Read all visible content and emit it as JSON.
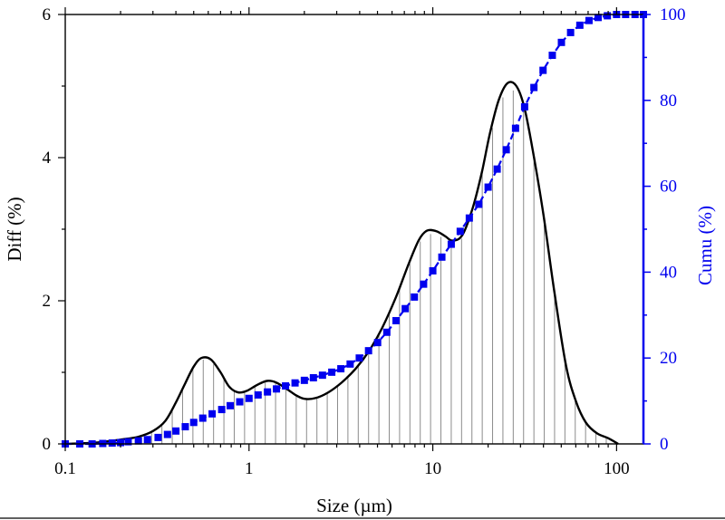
{
  "chart_data": {
    "type": "line",
    "xlabel": "Size (µm)",
    "ylabel_left": "Diff (%)",
    "ylabel_right": "Cumu (%)",
    "x_scale": "log",
    "xlim": [
      0.1,
      140
    ],
    "ylim_left": [
      0,
      6
    ],
    "ylim_right": [
      0,
      100
    ],
    "x_ticks": [
      {
        "value": 0.1,
        "label": "0.1"
      },
      {
        "value": 1,
        "label": "1"
      },
      {
        "value": 10,
        "label": "10"
      },
      {
        "value": 100,
        "label": "100"
      }
    ],
    "y_left_ticks": [
      {
        "value": 0,
        "label": "0"
      },
      {
        "value": 2,
        "label": "2"
      },
      {
        "value": 4,
        "label": "4"
      },
      {
        "value": 6,
        "label": "6"
      }
    ],
    "y_right_ticks": [
      {
        "value": 0,
        "label": "0"
      },
      {
        "value": 20,
        "label": "20"
      },
      {
        "value": 40,
        "label": "40"
      },
      {
        "value": 60,
        "label": "60"
      },
      {
        "value": 80,
        "label": "80"
      },
      {
        "value": 100,
        "label": "100"
      }
    ],
    "colors": {
      "diff": "#000000",
      "cumu": "#0000ee",
      "bars": "#8c8c8c"
    },
    "series": [
      {
        "name": "Diff",
        "axis": "left",
        "style": "line",
        "points": [
          [
            0.1,
            0.0
          ],
          [
            0.15,
            0.02
          ],
          [
            0.2,
            0.06
          ],
          [
            0.25,
            0.1
          ],
          [
            0.3,
            0.18
          ],
          [
            0.35,
            0.32
          ],
          [
            0.4,
            0.58
          ],
          [
            0.45,
            0.85
          ],
          [
            0.5,
            1.08
          ],
          [
            0.55,
            1.2
          ],
          [
            0.62,
            1.18
          ],
          [
            0.7,
            1.0
          ],
          [
            0.78,
            0.8
          ],
          [
            0.87,
            0.72
          ],
          [
            0.97,
            0.74
          ],
          [
            1.1,
            0.82
          ],
          [
            1.25,
            0.88
          ],
          [
            1.4,
            0.86
          ],
          [
            1.6,
            0.77
          ],
          [
            1.8,
            0.68
          ],
          [
            2.0,
            0.63
          ],
          [
            2.3,
            0.64
          ],
          [
            2.7,
            0.72
          ],
          [
            3.2,
            0.86
          ],
          [
            3.8,
            1.05
          ],
          [
            4.5,
            1.3
          ],
          [
            5.3,
            1.62
          ],
          [
            6.3,
            2.05
          ],
          [
            7.4,
            2.52
          ],
          [
            8.4,
            2.85
          ],
          [
            9.3,
            2.98
          ],
          [
            10.5,
            2.97
          ],
          [
            11.7,
            2.9
          ],
          [
            12.8,
            2.84
          ],
          [
            14.5,
            2.92
          ],
          [
            16.5,
            3.3
          ],
          [
            18.5,
            3.8
          ],
          [
            20.5,
            4.35
          ],
          [
            22.8,
            4.8
          ],
          [
            25.5,
            5.04
          ],
          [
            28.5,
            5.0
          ],
          [
            31.5,
            4.7
          ],
          [
            35,
            4.1
          ],
          [
            40,
            3.2
          ],
          [
            46,
            2.1
          ],
          [
            53,
            1.1
          ],
          [
            60,
            0.6
          ],
          [
            68,
            0.3
          ],
          [
            78,
            0.15
          ],
          [
            90,
            0.08
          ],
          [
            102,
            0.0
          ]
        ]
      },
      {
        "name": "Diff bins",
        "axis": "left",
        "style": "stick",
        "range": [
          0.2,
          100
        ],
        "bin_count": 49
      },
      {
        "name": "Cumu",
        "axis": "right",
        "style": "square-markers",
        "points": [
          [
            0.1,
            0.0
          ],
          [
            0.12,
            0.0
          ],
          [
            0.14,
            0.0
          ],
          [
            0.16,
            0.1
          ],
          [
            0.18,
            0.2
          ],
          [
            0.2,
            0.3
          ],
          [
            0.22,
            0.5
          ],
          [
            0.25,
            0.7
          ],
          [
            0.28,
            1.0
          ],
          [
            0.32,
            1.5
          ],
          [
            0.36,
            2.2
          ],
          [
            0.4,
            3.0
          ],
          [
            0.45,
            4.0
          ],
          [
            0.5,
            5.0
          ],
          [
            0.56,
            6.0
          ],
          [
            0.63,
            7.0
          ],
          [
            0.71,
            8.0
          ],
          [
            0.79,
            8.9
          ],
          [
            0.89,
            9.8
          ],
          [
            1.0,
            10.6
          ],
          [
            1.12,
            11.4
          ],
          [
            1.26,
            12.1
          ],
          [
            1.41,
            12.8
          ],
          [
            1.58,
            13.5
          ],
          [
            1.78,
            14.2
          ],
          [
            2.0,
            14.8
          ],
          [
            2.24,
            15.4
          ],
          [
            2.51,
            16.0
          ],
          [
            2.82,
            16.7
          ],
          [
            3.16,
            17.5
          ],
          [
            3.55,
            18.6
          ],
          [
            3.98,
            20.0
          ],
          [
            4.47,
            21.7
          ],
          [
            5.01,
            23.6
          ],
          [
            5.62,
            26.0
          ],
          [
            6.31,
            28.7
          ],
          [
            7.08,
            31.5
          ],
          [
            7.94,
            34.2
          ],
          [
            8.91,
            37.2
          ],
          [
            10.0,
            40.3
          ],
          [
            11.2,
            43.5
          ],
          [
            12.6,
            46.5
          ],
          [
            14.1,
            49.5
          ],
          [
            15.8,
            52.6
          ],
          [
            17.8,
            55.8
          ],
          [
            20.0,
            59.8
          ],
          [
            22.4,
            64.0
          ],
          [
            25.1,
            68.5
          ],
          [
            28.2,
            73.5
          ],
          [
            31.6,
            78.5
          ],
          [
            35.5,
            83.0
          ],
          [
            39.8,
            87.0
          ],
          [
            44.7,
            90.5
          ],
          [
            50.1,
            93.5
          ],
          [
            56.2,
            95.8
          ],
          [
            63.1,
            97.5
          ],
          [
            70.8,
            98.6
          ],
          [
            79.4,
            99.3
          ],
          [
            89.1,
            99.7
          ],
          [
            100,
            100.0
          ],
          [
            112,
            100.0
          ],
          [
            126,
            100.0
          ],
          [
            140,
            100.0
          ]
        ]
      }
    ]
  }
}
